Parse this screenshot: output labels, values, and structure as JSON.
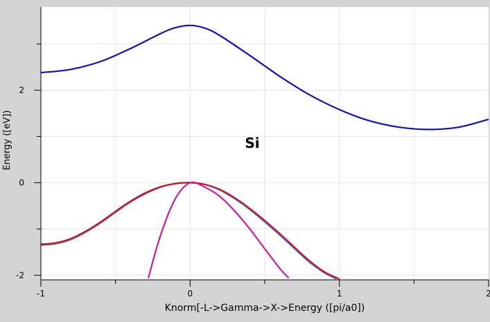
{
  "chart_data": {
    "type": "line",
    "title": "",
    "annotation": "Si",
    "xlabel": "Knorm[-L->Gamma->X->Energy ([pi/a0])",
    "ylabel": "Energy ([eV])",
    "xlim": [
      -1,
      2
    ],
    "ylim": [
      -2.1,
      3.8
    ],
    "xticks": [
      -1,
      0,
      1,
      2
    ],
    "yticks": [
      -2,
      0,
      2
    ],
    "grid": true,
    "legend": "none",
    "colors": {
      "plot_background": "#ffffff",
      "frame_background": "#d4d4d4",
      "grid": "#e6e6e6",
      "axis": "#000000"
    },
    "series": [
      {
        "color": "#1010b8",
        "x": [
          -1.0,
          -0.8,
          -0.6,
          -0.4,
          -0.2,
          -0.1,
          0.0,
          0.1,
          0.2,
          0.4,
          0.6,
          0.8,
          1.0,
          1.2,
          1.4,
          1.6,
          1.8,
          2.0
        ],
        "y": [
          2.38,
          2.45,
          2.62,
          2.9,
          3.22,
          3.35,
          3.4,
          3.34,
          3.18,
          2.75,
          2.3,
          1.9,
          1.58,
          1.34,
          1.2,
          1.15,
          1.2,
          1.37
        ]
      },
      {
        "color": "#4a7ed6",
        "x": [
          -1.0,
          -0.9,
          -0.8,
          -0.7,
          -0.6,
          -0.5,
          -0.4,
          -0.3,
          -0.2,
          -0.1,
          0.0,
          0.1,
          0.2,
          0.3,
          0.4,
          0.5,
          0.6,
          0.7,
          0.8,
          0.9,
          0.98
        ],
        "y": [
          -1.35,
          -1.32,
          -1.23,
          -1.07,
          -0.87,
          -0.64,
          -0.42,
          -0.24,
          -0.1,
          -0.02,
          0.0,
          -0.04,
          -0.16,
          -0.35,
          -0.58,
          -0.85,
          -1.13,
          -1.43,
          -1.72,
          -1.95,
          -2.08
        ]
      },
      {
        "color": "#cc1020",
        "x": [
          -1.0,
          -0.9,
          -0.8,
          -0.7,
          -0.6,
          -0.5,
          -0.4,
          -0.3,
          -0.2,
          -0.1,
          0.0,
          0.1,
          0.2,
          0.3,
          0.4,
          0.5,
          0.6,
          0.7,
          0.8,
          0.9,
          1.0
        ],
        "y": [
          -1.33,
          -1.3,
          -1.21,
          -1.05,
          -0.85,
          -0.62,
          -0.4,
          -0.22,
          -0.09,
          -0.02,
          0.0,
          -0.04,
          -0.15,
          -0.33,
          -0.56,
          -0.82,
          -1.1,
          -1.4,
          -1.69,
          -1.93,
          -2.08
        ]
      },
      {
        "color": "#cc1aa0",
        "x": [
          -0.28,
          -0.2,
          -0.1,
          0.0,
          0.1,
          0.2,
          0.3,
          0.4,
          0.5,
          0.6,
          0.66
        ],
        "y": [
          -2.06,
          -1.15,
          -0.35,
          0.0,
          -0.1,
          -0.3,
          -0.62,
          -1.0,
          -1.43,
          -1.85,
          -2.06
        ]
      }
    ]
  }
}
